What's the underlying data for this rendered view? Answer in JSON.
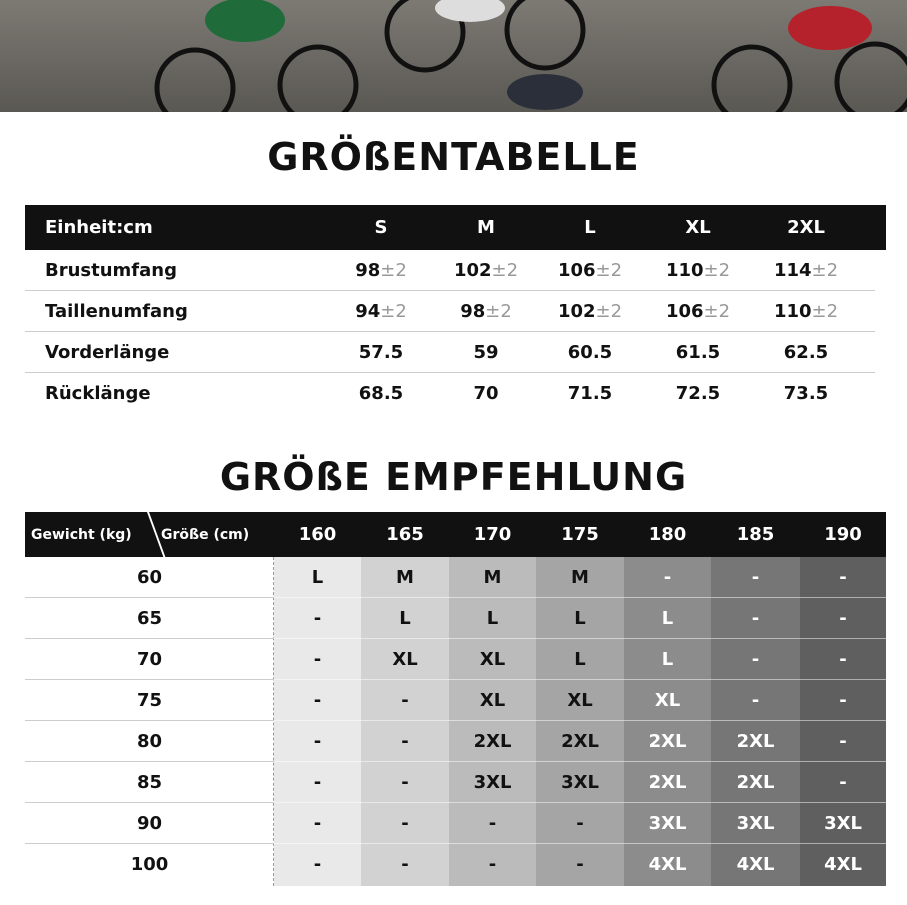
{
  "size_table": {
    "title": "GRÖßENTABELLE",
    "header": [
      "Einheit:cm",
      "S",
      "M",
      "L",
      "XL",
      "2XL"
    ],
    "rows": [
      {
        "label": "Brustumfang",
        "cells": [
          {
            "main": 98,
            "tol": "±2"
          },
          {
            "main": 102,
            "tol": "±2"
          },
          {
            "main": 106,
            "tol": "±2"
          },
          {
            "main": 110,
            "tol": "±2"
          },
          {
            "main": 114,
            "tol": "±2"
          }
        ]
      },
      {
        "label": "Taillenumfang",
        "cells": [
          {
            "main": 94,
            "tol": "±2"
          },
          {
            "main": 98,
            "tol": "±2"
          },
          {
            "main": 102,
            "tol": "±2"
          },
          {
            "main": 106,
            "tol": "±2"
          },
          {
            "main": 110,
            "tol": "±2"
          }
        ]
      },
      {
        "label": "Vorderlänge",
        "cells": [
          {
            "main": 57.5
          },
          {
            "main": 59
          },
          {
            "main": 60.5
          },
          {
            "main": 61.5
          },
          {
            "main": 62.5
          }
        ]
      },
      {
        "label": "Rücklänge",
        "cells": [
          {
            "main": 68.5
          },
          {
            "main": 70
          },
          {
            "main": 71.5
          },
          {
            "main": 72.5
          },
          {
            "main": 73.5
          }
        ]
      }
    ]
  },
  "recommendation": {
    "title": "GRÖßE EMPFEHLUNG",
    "weight_label": "Gewicht (kg)",
    "height_label": "Größe (cm)",
    "heights": [
      160,
      165,
      170,
      175,
      180,
      185,
      190
    ],
    "rows": [
      {
        "weight": 60,
        "sizes": [
          "L",
          "M",
          "M",
          "M",
          "-",
          "-",
          "-"
        ]
      },
      {
        "weight": 65,
        "sizes": [
          "-",
          "L",
          "L",
          "L",
          "L",
          "-",
          "-"
        ]
      },
      {
        "weight": 70,
        "sizes": [
          "-",
          "XL",
          "XL",
          "L",
          "L",
          "-",
          "-"
        ]
      },
      {
        "weight": 75,
        "sizes": [
          "-",
          "-",
          "XL",
          "XL",
          "XL",
          "-",
          "-"
        ]
      },
      {
        "weight": 80,
        "sizes": [
          "-",
          "-",
          "2XL",
          "2XL",
          "2XL",
          "2XL",
          "-"
        ]
      },
      {
        "weight": 85,
        "sizes": [
          "-",
          "-",
          "3XL",
          "3XL",
          "2XL",
          "2XL",
          "-"
        ]
      },
      {
        "weight": 90,
        "sizes": [
          "-",
          "-",
          "-",
          "-",
          "3XL",
          "3XL",
          "3XL"
        ]
      },
      {
        "weight": 100,
        "sizes": [
          "-",
          "-",
          "-",
          "-",
          "4XL",
          "4XL",
          "4XL"
        ]
      }
    ]
  }
}
